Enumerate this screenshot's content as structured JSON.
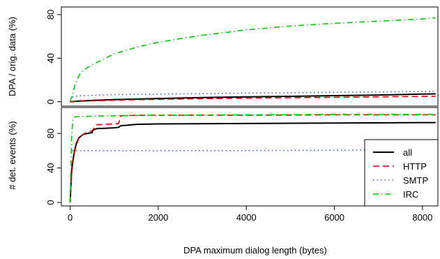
{
  "chart_data": [
    {
      "type": "line",
      "panel": "top",
      "xlabel": "",
      "ylabel": "DPA / orig. data (%)",
      "xlim": [
        -200,
        8350
      ],
      "ylim": [
        -4,
        87
      ],
      "yticks": [
        0,
        40,
        80
      ],
      "series": [
        {
          "name": "all",
          "color": "#000000",
          "dash": "solid",
          "x": [
            0,
            200,
            500,
            1000,
            2000,
            3000,
            4000,
            5000,
            6000,
            7000,
            8000,
            8300
          ],
          "y": [
            0,
            0.6,
            1.2,
            2,
            3,
            3.8,
            4.5,
            5,
            5.6,
            6.2,
            7,
            7.2
          ]
        },
        {
          "name": "HTTP",
          "color": "#dd0000",
          "dash": "dashed",
          "x": [
            0,
            200,
            500,
            1000,
            2000,
            3000,
            4000,
            5000,
            6000,
            7000,
            8000,
            8300
          ],
          "y": [
            0,
            0.4,
            0.8,
            1.4,
            2.2,
            2.8,
            3.3,
            3.7,
            4.1,
            4.5,
            4.9,
            5
          ]
        },
        {
          "name": "SMTP",
          "color": "#3355cc",
          "dash": "dotted",
          "x": [
            50,
            200,
            500,
            1000,
            2000,
            3000,
            4000,
            5000,
            6000,
            7000,
            8000,
            8300
          ],
          "y": [
            4.5,
            5.5,
            6,
            6.5,
            7,
            7.5,
            8,
            8.3,
            8.6,
            9,
            9.4,
            9.6
          ]
        },
        {
          "name": "IRC",
          "color": "#00cc00",
          "dash": "dotdash",
          "x": [
            0,
            60,
            120,
            200,
            300,
            500,
            800,
            1000,
            1500,
            2000,
            2500,
            3000,
            4000,
            5000,
            6000,
            7000,
            8000,
            8300
          ],
          "y": [
            0,
            8,
            17,
            24,
            29,
            34,
            40,
            44,
            50,
            54.5,
            58,
            61,
            66,
            69.5,
            72,
            74,
            76,
            77
          ]
        }
      ]
    },
    {
      "type": "line",
      "panel": "bottom",
      "xlabel": "DPA maximum dialog length (bytes)",
      "ylabel": "# det. events (%)",
      "xlim": [
        -200,
        8350
      ],
      "ylim": [
        -4,
        110
      ],
      "xticks": [
        0,
        2000,
        4000,
        6000,
        8000
      ],
      "yticks": [
        0,
        40,
        80
      ],
      "series": [
        {
          "name": "all",
          "color": "#000000",
          "dash": "solid",
          "x": [
            0,
            30,
            60,
            100,
            150,
            200,
            300,
            400,
            500,
            520,
            600,
            800,
            1000,
            1100,
            1150,
            1300,
            1400,
            1500,
            2000,
            4000,
            6000,
            8000,
            8300
          ],
          "y": [
            0,
            35,
            48,
            60,
            70,
            75,
            79,
            80,
            81,
            84,
            85.5,
            86,
            86.5,
            87,
            89,
            89.5,
            90,
            90.5,
            91,
            91.5,
            92,
            92.5,
            92.5
          ]
        },
        {
          "name": "HTTP",
          "color": "#dd0000",
          "dash": "dashed",
          "x": [
            0,
            30,
            60,
            100,
            150,
            200,
            300,
            400,
            500,
            600,
            800,
            1000,
            1100,
            1150,
            1500,
            2000,
            4000,
            6000,
            8000,
            8300
          ],
          "y": [
            0,
            30,
            45,
            58,
            68,
            75,
            79,
            82,
            83,
            90,
            90.5,
            91,
            91.5,
            100.5,
            101,
            101,
            101,
            101.5,
            101.5,
            101.5
          ]
        },
        {
          "name": "SMTP",
          "color": "#3355cc",
          "dash": "dotted",
          "x": [
            50,
            500,
            1000,
            2000,
            4000,
            6000,
            7000,
            8300
          ],
          "y": [
            60,
            60,
            60,
            60,
            60,
            60.5,
            61,
            61
          ]
        },
        {
          "name": "IRC",
          "color": "#00cc00",
          "dash": "dotdash",
          "x": [
            0,
            30,
            60,
            100,
            200,
            500,
            1000,
            2000,
            4000,
            6000,
            8000,
            8300
          ],
          "y": [
            0,
            72,
            96,
            99,
            99.5,
            100,
            100.5,
            101,
            101.5,
            102,
            102,
            102
          ]
        }
      ]
    }
  ],
  "legend": {
    "position": "bottom-right",
    "entries": [
      {
        "name": "all",
        "color": "#000000",
        "dash": "solid"
      },
      {
        "name": "HTTP",
        "color": "#dd0000",
        "dash": "dashed"
      },
      {
        "name": "SMTP",
        "color": "#3355cc",
        "dash": "dotted"
      },
      {
        "name": "IRC",
        "color": "#00cc00",
        "dash": "dotdash"
      }
    ]
  }
}
